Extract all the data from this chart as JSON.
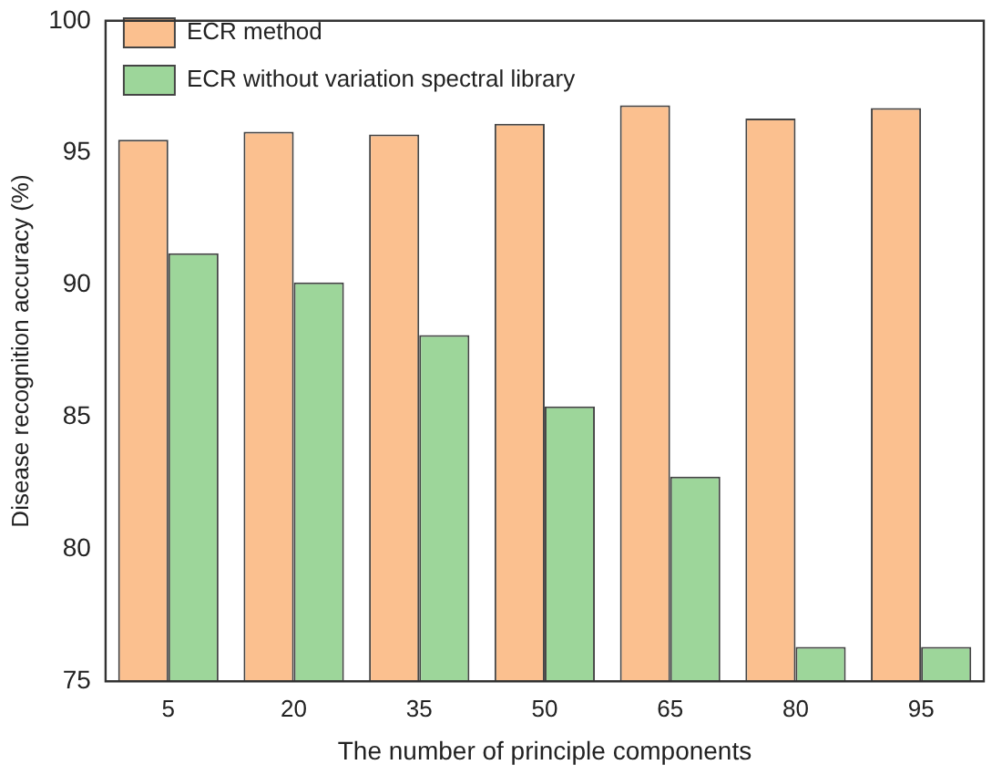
{
  "chart_data": {
    "type": "bar",
    "xlabel": "The number of principle components",
    "ylabel": "Disease recognition accuracy (%)",
    "categories": [
      "5",
      "20",
      "35",
      "50",
      "65",
      "80",
      "95"
    ],
    "series": [
      {
        "name": "ECR method",
        "color": "#fbc08f",
        "values": [
          95.5,
          95.8,
          95.7,
          96.1,
          96.8,
          96.3,
          96.7
        ]
      },
      {
        "name": "ECR without variation spectral library",
        "color": "#9dd69a",
        "values": [
          91.2,
          90.1,
          88.1,
          85.4,
          82.75,
          76.3,
          76.3
        ]
      }
    ],
    "ylim": [
      75,
      100
    ],
    "yticks": [
      75,
      80,
      85,
      90,
      95,
      100
    ],
    "grid": false,
    "legend": "top left"
  }
}
